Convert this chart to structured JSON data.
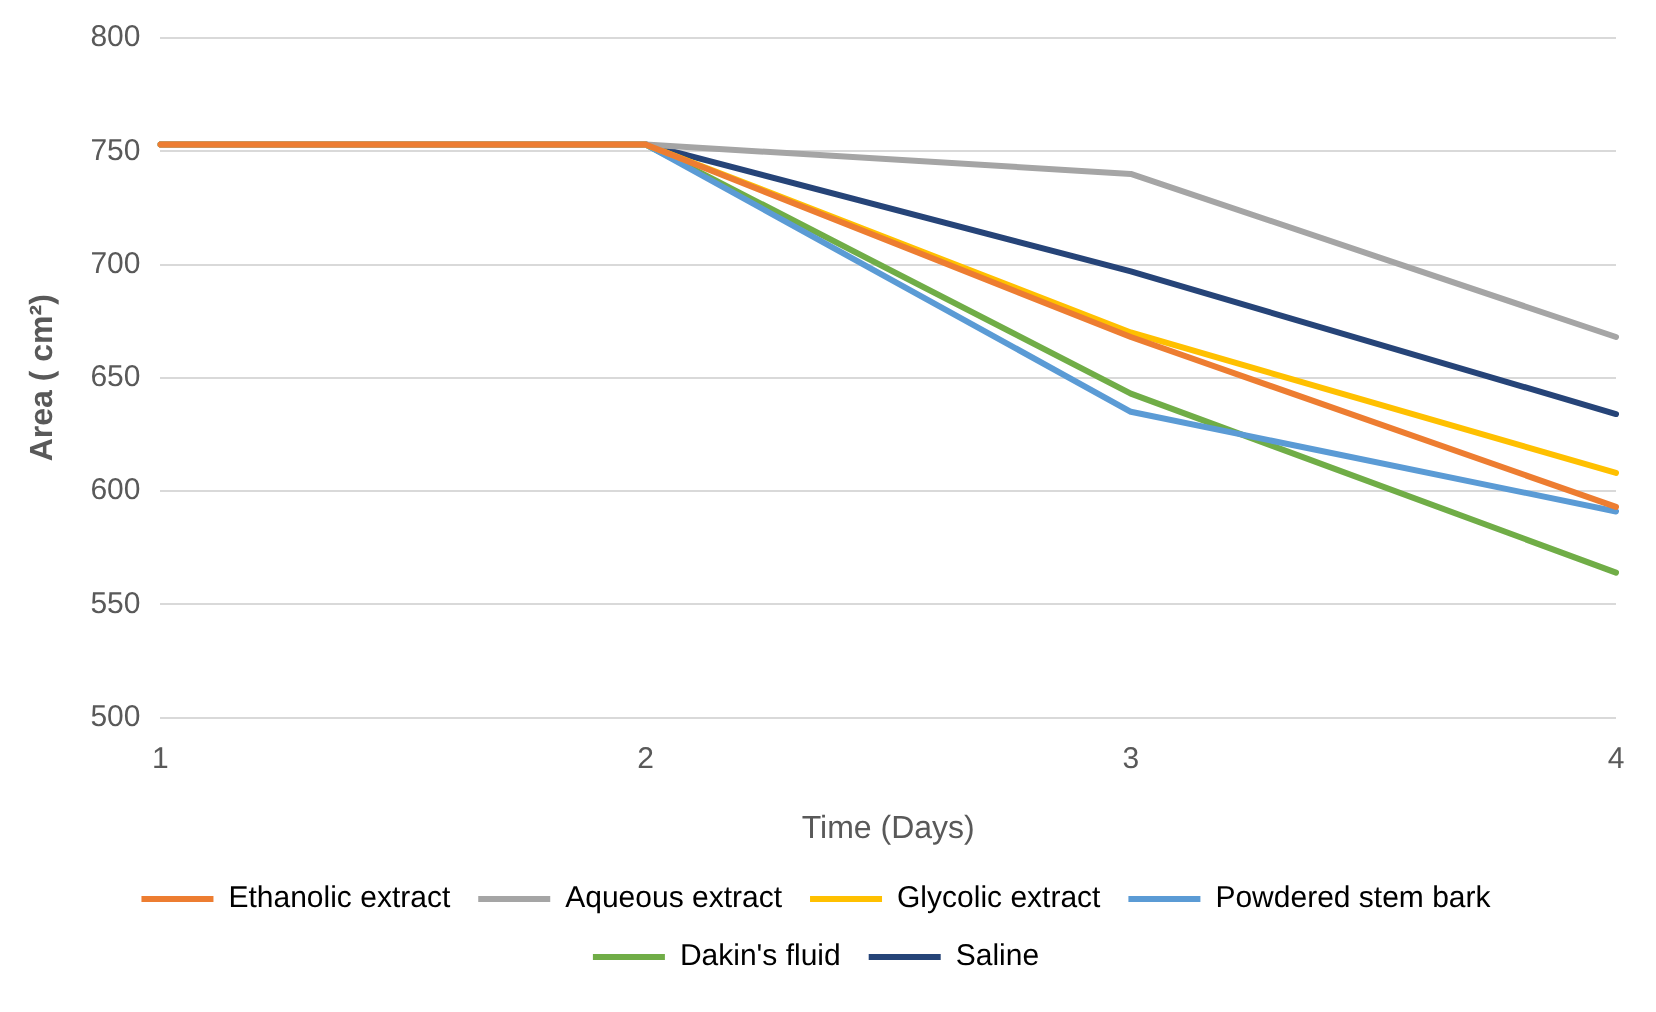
{
  "chart_data": {
    "type": "line",
    "xlabel": "Time (Days)",
    "ylabel": "Area ( cm²)",
    "categories": [
      "1",
      "2",
      "3",
      "4"
    ],
    "series": [
      {
        "name": "Ethanolic extract",
        "color": "#ed7d31",
        "values": [
          753,
          753,
          668,
          593
        ]
      },
      {
        "name": "Aqueous extract",
        "color": "#a5a5a5",
        "values": [
          753,
          753,
          740,
          668
        ]
      },
      {
        "name": "Glycolic extract",
        "color": "#ffc000",
        "values": [
          753,
          753,
          670,
          608
        ]
      },
      {
        "name": "Powdered stem bark",
        "color": "#5b9bd5",
        "values": [
          753,
          753,
          635,
          591
        ]
      },
      {
        "name": "Dakin's fluid",
        "color": "#70ad47",
        "values": [
          753,
          753,
          643,
          564
        ]
      },
      {
        "name": "Saline",
        "color": "#264478",
        "values": [
          753,
          753,
          697,
          634
        ]
      }
    ],
    "ylim": [
      500,
      800
    ],
    "yticks": [
      500,
      550,
      600,
      650,
      700,
      750,
      800
    ],
    "grid": "y",
    "legend": "bottom",
    "marker": "none",
    "line_style": "solid"
  }
}
